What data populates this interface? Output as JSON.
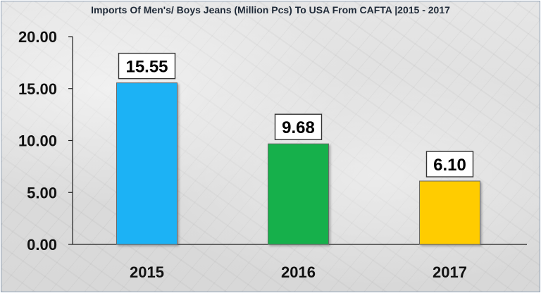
{
  "chart_data": {
    "type": "bar",
    "title": "Imports Of Men's/ Boys Jeans (Million Pcs) To USA From CAFTA |2015 - 2017",
    "xlabel": "",
    "ylabel": "",
    "categories": [
      "2015",
      "2016",
      "2017"
    ],
    "values": [
      15.55,
      9.68,
      6.1
    ],
    "value_labels": [
      "15.55",
      "9.68",
      "6.10"
    ],
    "colors": [
      "#1fb2f5",
      "#12b04c",
      "#ffcc00"
    ],
    "ylim": [
      0,
      20
    ],
    "yticks": [
      {
        "value": 0,
        "label": "0.00"
      },
      {
        "value": 5,
        "label": "5.00"
      },
      {
        "value": 10,
        "label": "10.00"
      },
      {
        "value": 15,
        "label": "15.00"
      },
      {
        "value": 20,
        "label": "20.00"
      }
    ],
    "grid": false,
    "legend": "none"
  }
}
